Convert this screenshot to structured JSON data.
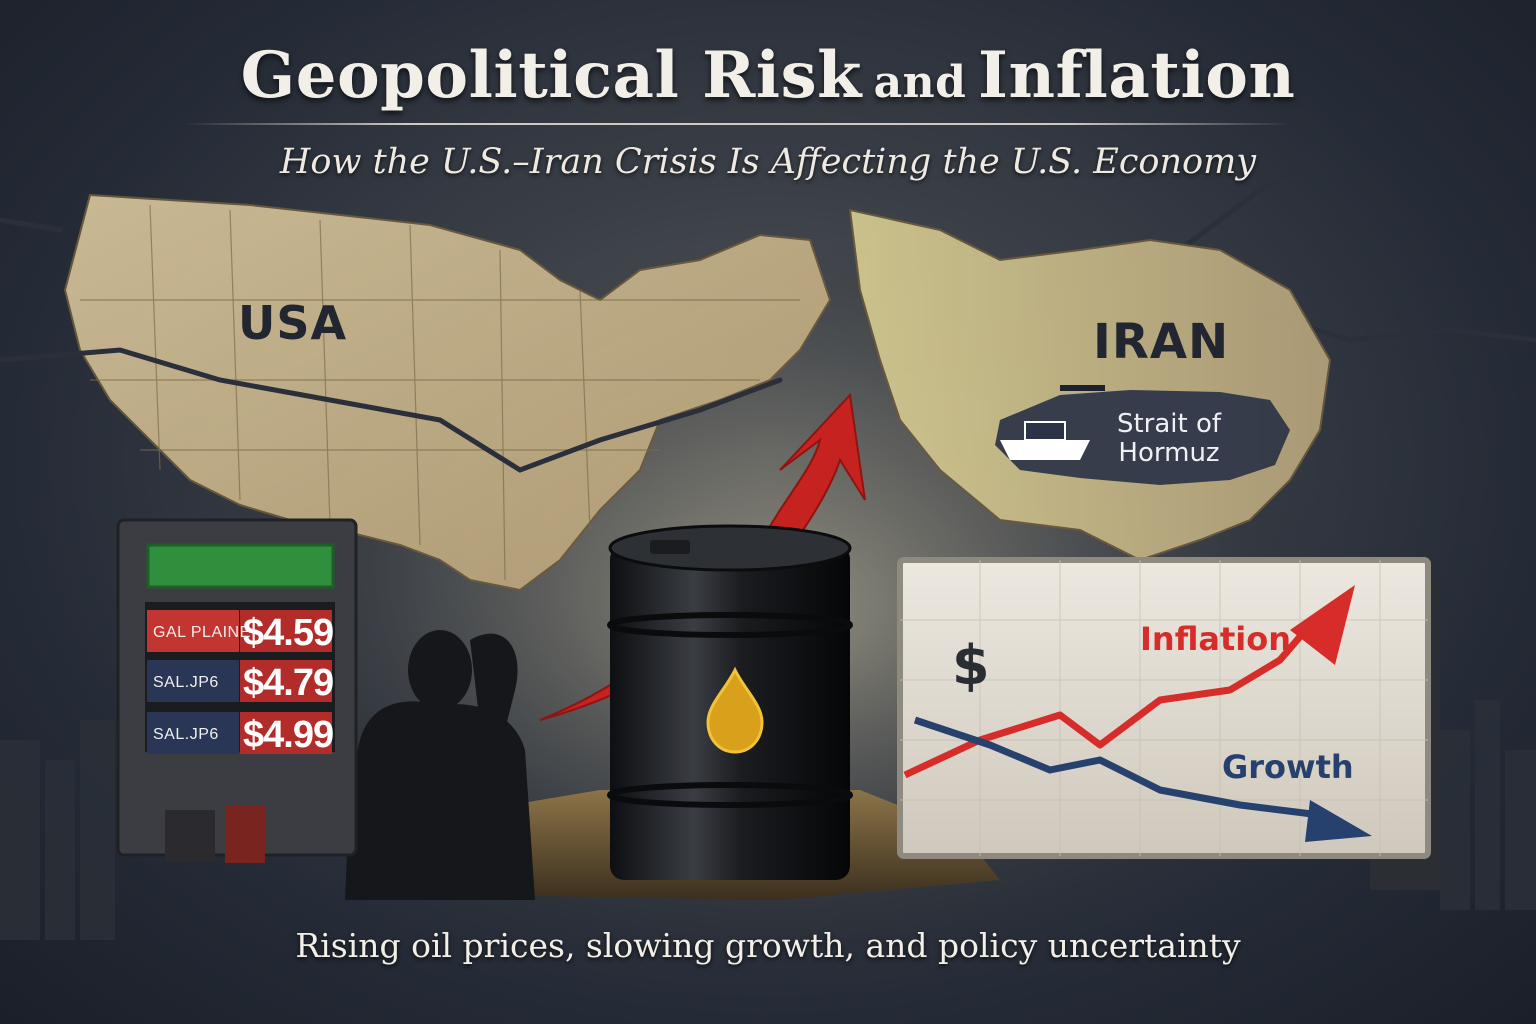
{
  "header": {
    "title_main": "Geopolitical Risk",
    "title_connector": "and",
    "title_end": "Inflation",
    "subtitle": "How the U.S.–Iran Crisis Is Affecting the U.S. Economy"
  },
  "map": {
    "usa_label": "USA",
    "iran_label": "IRAN",
    "strait_line1": "Strait of",
    "strait_line2": "Hormuz"
  },
  "gas_sign": {
    "rows": [
      {
        "label": "GAL PLAINE",
        "price": "$4.59"
      },
      {
        "label": "SAL.JP6",
        "price": "$4.79"
      },
      {
        "label": "SAL.JP6",
        "price": "$4.99"
      }
    ]
  },
  "economy_chart": {
    "currency_symbol": "$",
    "inflation_label": "Inflation",
    "growth_label": "Growth",
    "series": [
      {
        "name": "Inflation",
        "trend": "rising",
        "color": "#d62c2a"
      },
      {
        "name": "Growth",
        "trend": "falling",
        "color": "#27416f"
      }
    ]
  },
  "tagline": "Rising oil prices, slowing growth, and policy uncertainty",
  "colors": {
    "accent_red": "#d62c2a",
    "accent_blue": "#27416f",
    "map_tan": "#c8b48a",
    "background_dark": "#1e2430"
  }
}
